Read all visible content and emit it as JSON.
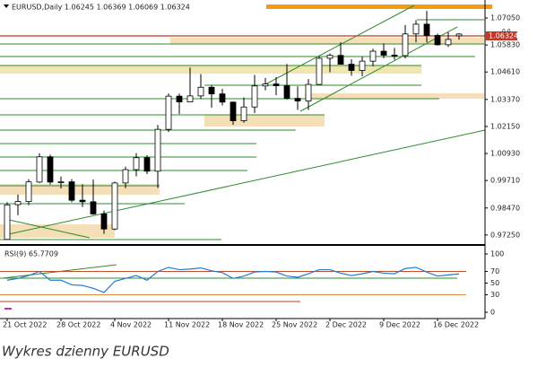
{
  "chart_data": [
    {
      "type": "candlestick",
      "title": "EURUSD,Daily  1.06245 1.06369 1.06069 1.06324",
      "price_label": "1.06324",
      "annotation": "0.0",
      "categories": [
        "21 Oct 2022",
        null,
        null,
        null,
        null,
        "28 Oct 2022",
        null,
        null,
        null,
        null,
        "4 Nov 2022",
        null,
        null,
        null,
        null,
        "11 Nov 2022",
        null,
        null,
        null,
        null,
        "18 Nov 2022",
        null,
        null,
        null,
        null,
        "25 Nov 2022",
        null,
        null,
        null,
        null,
        "2 Dec 2022",
        null,
        null,
        null,
        null,
        "9 Dec 2022",
        null,
        null,
        null,
        null,
        "16 Dec 2022",
        null,
        null
      ],
      "open": [
        0.9705,
        0.9862,
        0.9876,
        0.9964,
        1.0078,
        0.9964,
        0.9965,
        0.9882,
        0.9875,
        0.982,
        0.9752,
        0.996,
        1.002,
        1.0074,
        1.0013,
        1.0202,
        1.0352,
        1.0326,
        1.0353,
        1.0392,
        1.0362,
        1.0325,
        1.0241,
        1.0303,
        1.0398,
        1.0407,
        1.0399,
        1.0342,
        1.033,
        1.0405,
        1.0523,
        1.0536,
        1.0496,
        1.0468,
        1.051,
        1.0555,
        1.0537,
        1.0535,
        1.0633,
        1.0677,
        1.0626,
        1.0584,
        1.06245
      ],
      "high": [
        0.9873,
        0.9908,
        0.9977,
        1.0094,
        1.0088,
        0.9989,
        0.9977,
        0.9954,
        0.9975,
        0.9835,
        0.9966,
        1.0034,
        1.0095,
        1.0085,
        1.0222,
        1.0364,
        1.0363,
        1.0481,
        1.0452,
        1.04,
        1.0385,
        1.0327,
        1.0346,
        1.0448,
        1.0434,
        1.0437,
        1.0497,
        1.0396,
        1.0429,
        1.0533,
        1.0545,
        1.0595,
        1.0519,
        1.053,
        1.0566,
        1.059,
        1.057,
        1.0673,
        1.0695,
        1.0737,
        1.0634,
        1.064,
        1.06369
      ],
      "low": [
        0.9704,
        0.9814,
        0.986,
        0.996,
        0.9953,
        0.9935,
        0.9873,
        0.9851,
        0.9816,
        0.973,
        0.9747,
        0.9936,
        0.999,
        1.0,
        0.9937,
        1.019,
        1.0271,
        1.0324,
        1.034,
        1.03,
        1.031,
        1.0223,
        1.0232,
        1.0276,
        1.0378,
        1.0356,
        1.0336,
        1.029,
        1.029,
        1.0402,
        1.046,
        1.0495,
        1.0444,
        1.0442,
        1.0487,
        1.0523,
        1.0516,
        1.0522,
        1.0595,
        1.0595,
        1.058,
        1.0574,
        1.06069
      ],
      "close": [
        0.9861,
        0.9876,
        0.9965,
        1.0078,
        0.9964,
        0.9965,
        0.9882,
        0.9875,
        0.982,
        0.9752,
        0.996,
        1.002,
        1.0074,
        1.0013,
        1.0202,
        1.0352,
        1.0326,
        1.0353,
        1.0392,
        1.0362,
        1.0325,
        1.0241,
        1.0303,
        1.0398,
        1.0407,
        1.0399,
        1.0342,
        1.033,
        1.0405,
        1.0523,
        1.0536,
        1.0496,
        1.0468,
        1.051,
        1.0555,
        1.0537,
        1.0535,
        1.0633,
        1.0677,
        1.0626,
        1.0584,
        1.0608,
        1.06324
      ],
      "ylim": [
        0.9684,
        1.0778
      ],
      "yticks": [
        {
          "value": 1.0705,
          "label": "1.07050"
        },
        {
          "value": 1.0583,
          "label": "1.05830"
        },
        {
          "value": 1.0461,
          "label": "1.04610"
        },
        {
          "value": 1.0337,
          "label": "1.03370"
        },
        {
          "value": 1.0215,
          "label": "1.02150"
        },
        {
          "value": 1.0093,
          "label": "1.00930"
        },
        {
          "value": 0.9971,
          "label": "0.99710"
        },
        {
          "value": 0.9847,
          "label": "0.98470"
        },
        {
          "value": 0.9725,
          "label": "0.97250"
        }
      ],
      "up_color": "#ffffff",
      "down_color": "#000000",
      "grid": false
    },
    {
      "type": "line",
      "title": "RSI(9) 65.7709",
      "color": "#1e7bd8",
      "values": [
        55,
        58,
        63,
        70,
        55,
        55,
        47,
        46,
        41,
        34,
        53,
        58,
        63,
        55,
        70,
        77,
        73,
        74,
        76,
        71,
        68,
        58,
        62,
        69,
        70,
        69,
        62,
        60,
        66,
        73,
        73,
        67,
        63,
        66,
        70,
        67,
        66,
        75,
        77,
        69,
        62,
        64,
        65.7709
      ],
      "ylim": [
        0,
        100
      ],
      "yticks": [
        100,
        70,
        50,
        30,
        0
      ],
      "levels": [
        70,
        30
      ],
      "level_colors": [
        "#c0502a",
        "#e08a3c"
      ],
      "grid": false
    }
  ],
  "caption": "Wykres dzienny EURUSD"
}
